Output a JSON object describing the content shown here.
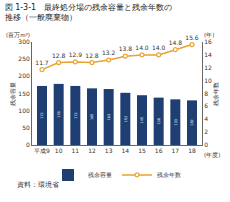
{
  "chart_data": {
    "type": "bar",
    "title": "図 1-3-1　最終処分場の残余容量と残余年数の\n推移（一般廃棄物）",
    "categories": [
      "平成9",
      "10",
      "11",
      "12",
      "13",
      "14",
      "15",
      "16",
      "17",
      "18"
    ],
    "y_label": "残余容量",
    "y2_label": "残余年数",
    "y_unit": "(百万m³)",
    "y2_unit": "(年)",
    "x_unit": "(年度)",
    "source": "資料：環境省",
    "series": [
      {
        "name": "残余容量",
        "type": "bar",
        "color": "#1f3f73",
        "values": [
          172,
          178,
          172,
          165,
          163,
          152,
          145,
          138,
          133,
          130
        ]
      },
      {
        "name": "残余年数",
        "type": "line",
        "axis": "y2",
        "color": "#e8a22e",
        "marker": "circle",
        "values": [
          11.7,
          12.8,
          12.9,
          12.8,
          13.2,
          13.8,
          14.0,
          14.0,
          14.8,
          15.6
        ],
        "value_labels": [
          "11.7",
          "12.8",
          "12.9",
          "12.8",
          "13.2",
          "13.8",
          "14.0",
          "14.0",
          "14.8",
          "15.6"
        ]
      }
    ],
    "ylim": [
      0,
      300
    ],
    "yticks": [
      0,
      50,
      100,
      150,
      200,
      250,
      300
    ],
    "y2lim": [
      0,
      16
    ],
    "y2ticks": [
      0,
      2,
      4,
      6,
      8,
      10,
      12,
      14,
      16
    ],
    "grid": false,
    "legend": "bottom",
    "data_labels": true
  }
}
